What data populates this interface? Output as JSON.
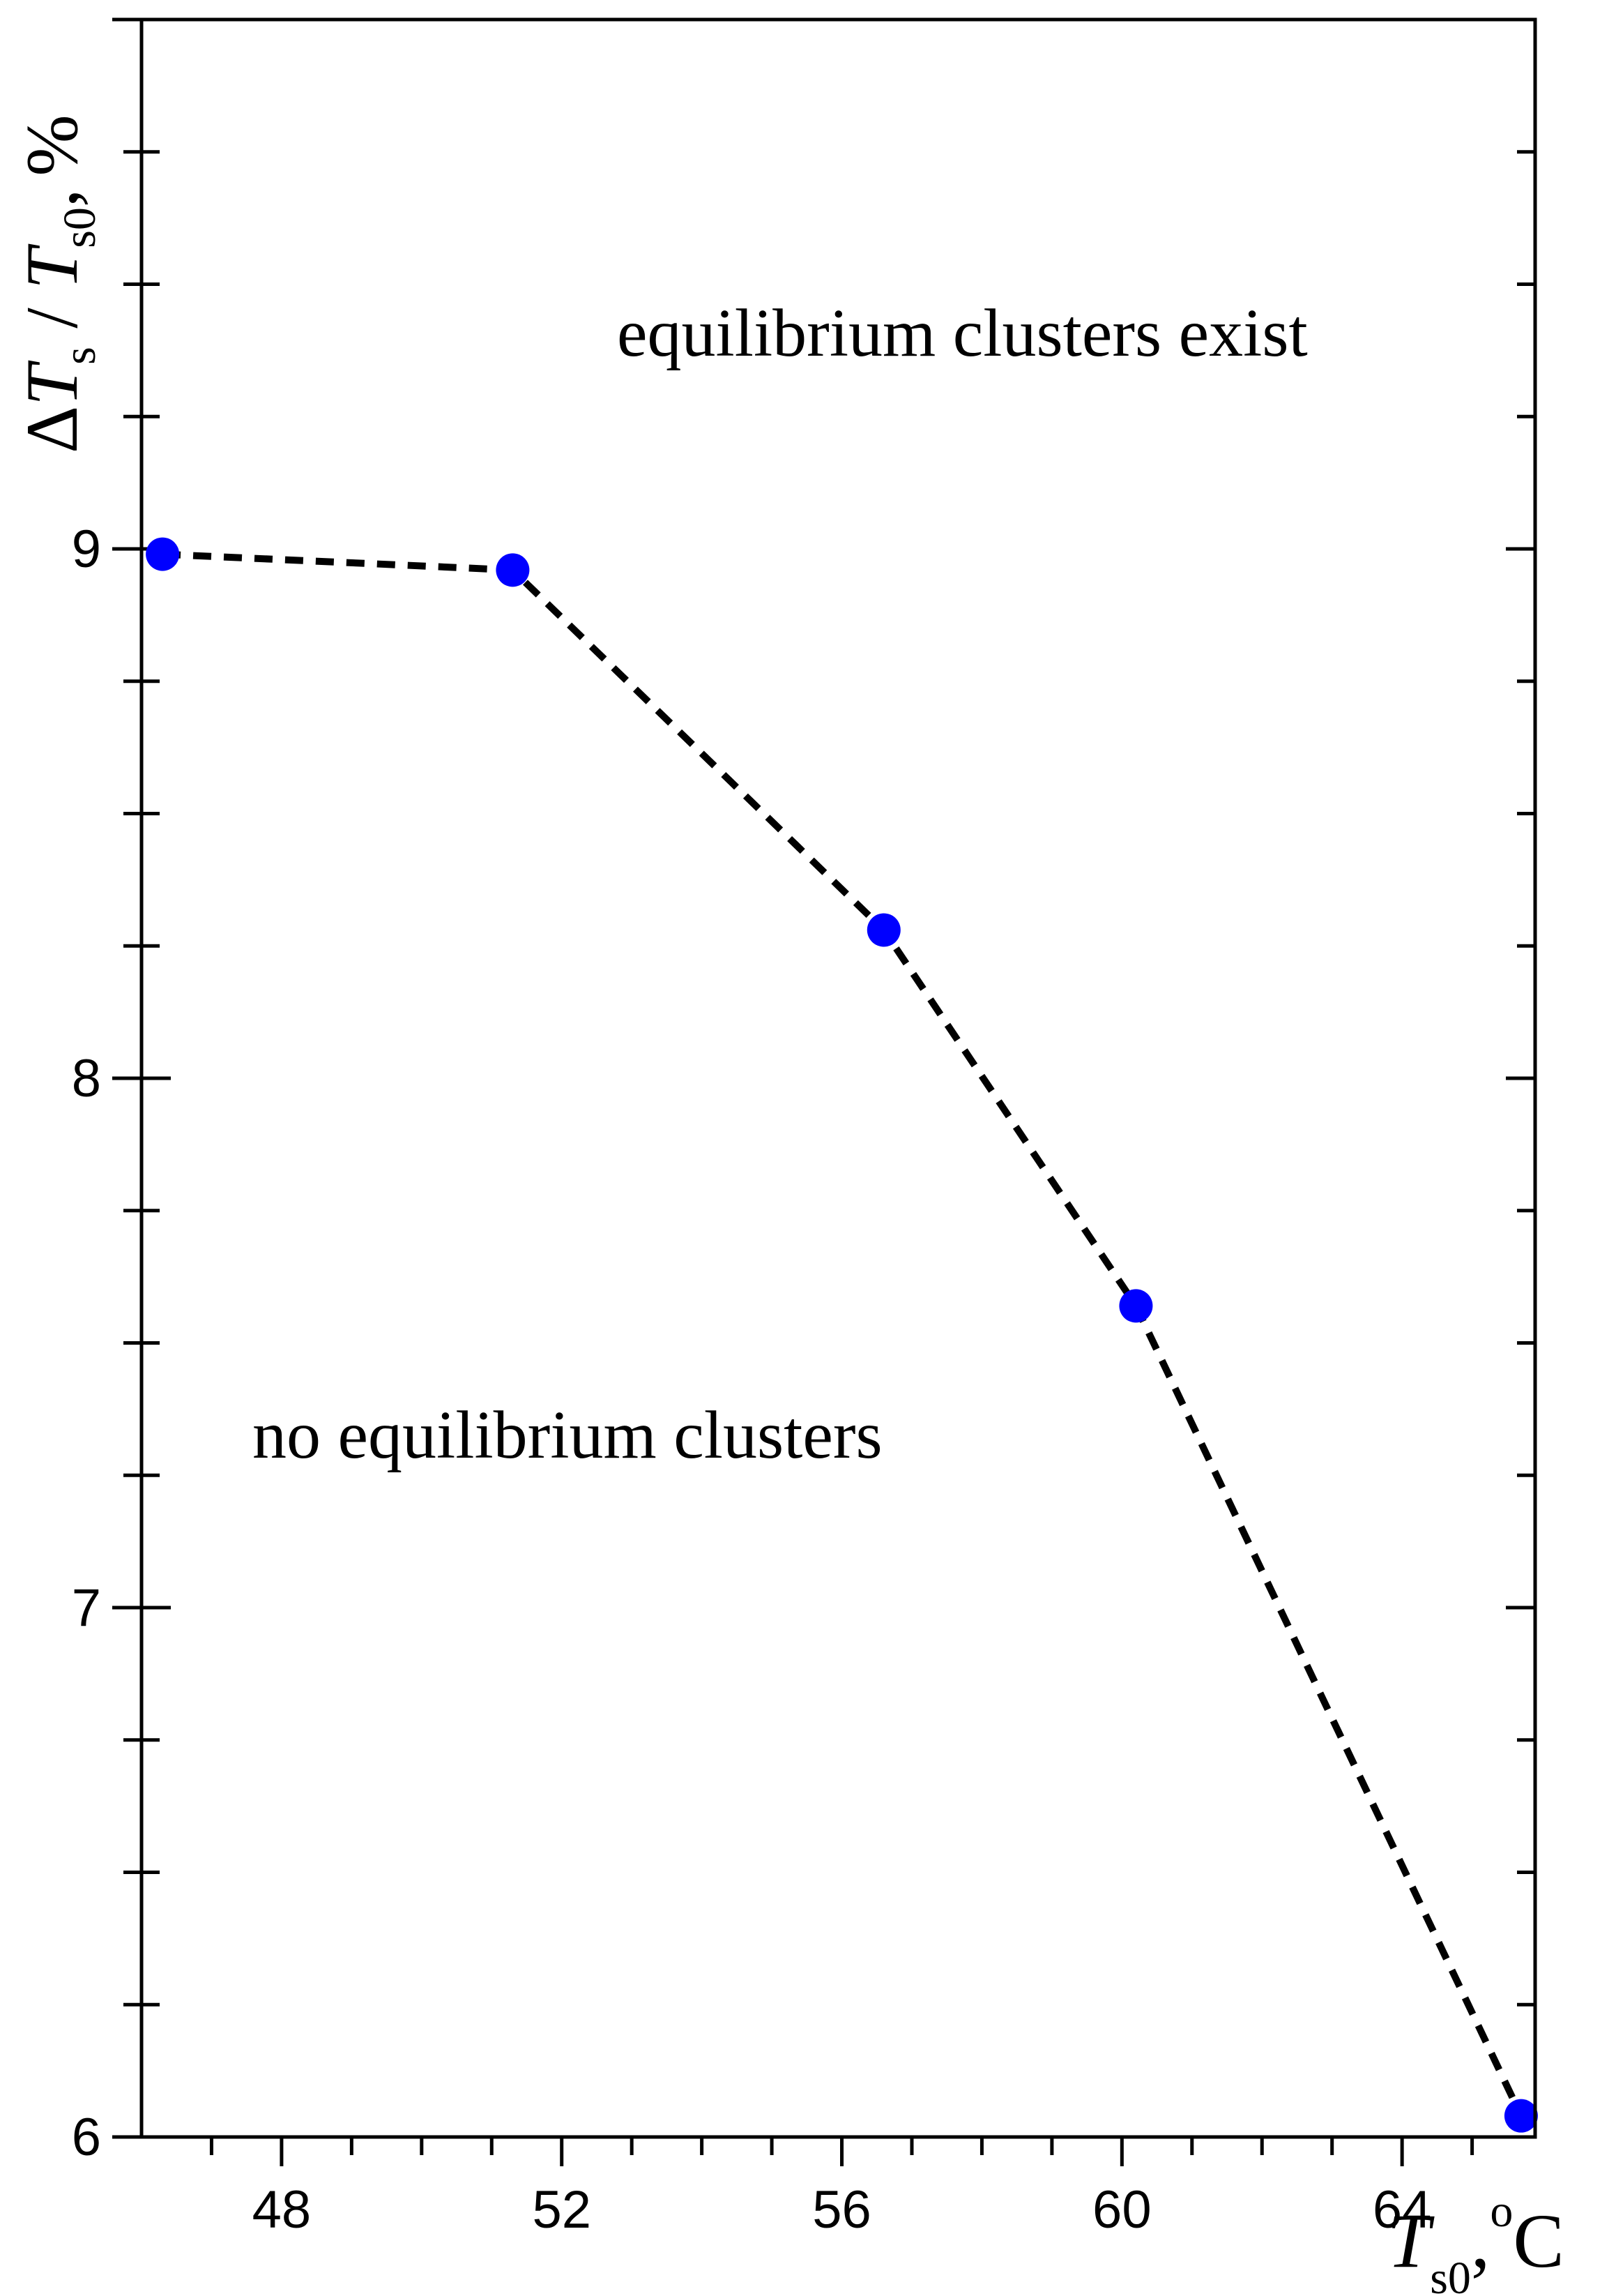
{
  "chart_data": {
    "type": "scatter",
    "title": "",
    "xlabel": "T_s0, oC",
    "ylabel": "ΔT_s / T_s0, %",
    "xlabel_parts": {
      "var": "T",
      "sub": "s0",
      "sep": ",",
      "sup": "o",
      "unit": "C"
    },
    "ylabel_parts": {
      "delta": "Δ",
      "var1": "T",
      "sub1": "s",
      "slash": " / ",
      "var2": "T",
      "sub2": "s0",
      "sep": ",",
      "unit": "%"
    },
    "xlim": [
      46.0,
      65.9
    ],
    "ylim": [
      6.0,
      10.0
    ],
    "grid": false,
    "x_ticks": [
      "48",
      "52",
      "56",
      "60",
      "64"
    ],
    "y_ticks": [
      "6",
      "7",
      "8",
      "9"
    ],
    "series": [
      {
        "color": "#0000ff",
        "line_style": "dashed",
        "line_color": "#000000",
        "x": [
          46.3,
          51.3,
          56.6,
          60.2,
          65.7
        ],
        "y": [
          8.99,
          8.96,
          8.28,
          7.57,
          6.04
        ]
      }
    ],
    "annotations": {
      "upper": "equilibrium clusters exist",
      "lower": "no equilibrium clusters"
    }
  }
}
